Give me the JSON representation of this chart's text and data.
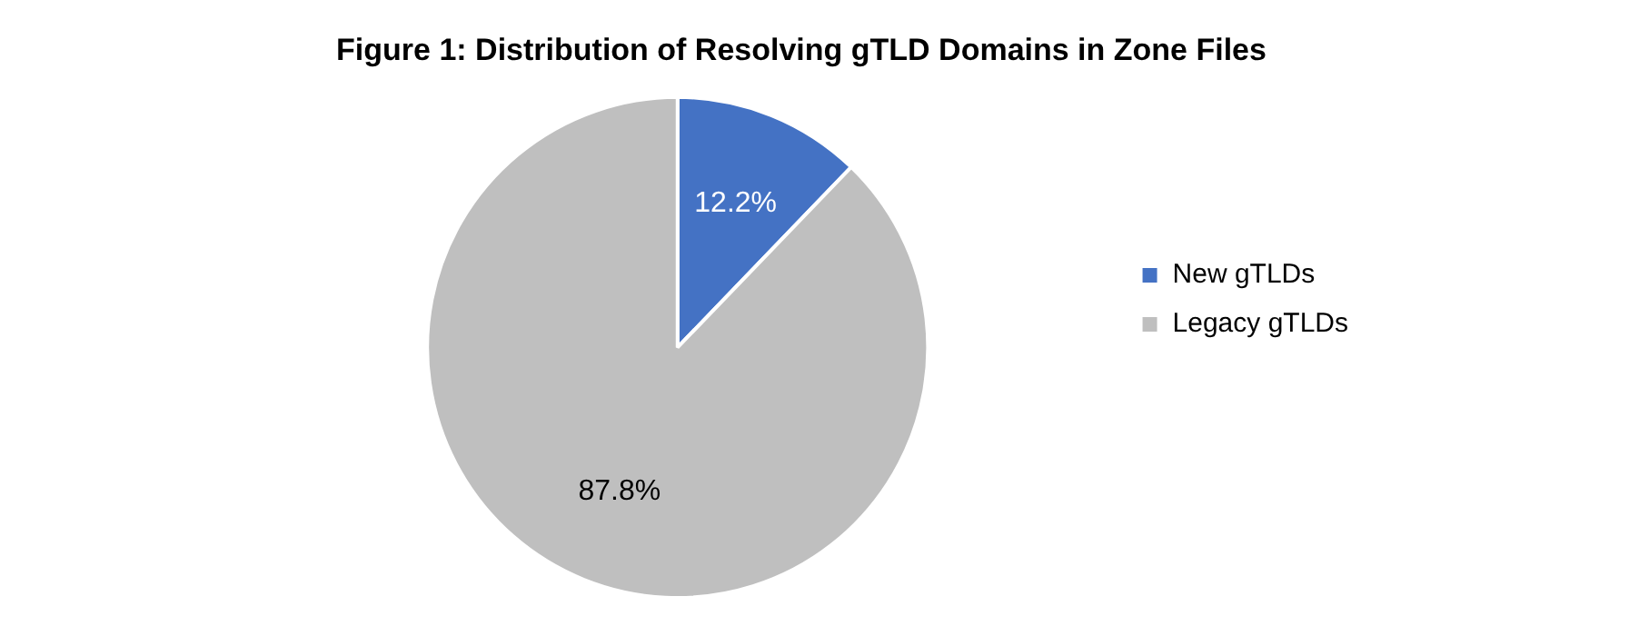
{
  "chart_data": {
    "type": "pie",
    "title": "Figure 1: Distribution of Resolving gTLD Domains in Zone Files",
    "categories": [
      "New gTLDs",
      "Legacy gTLDs"
    ],
    "values": [
      12.2,
      87.8
    ],
    "colors": [
      "#4472c4",
      "#bfbfbf"
    ],
    "value_labels": [
      "12.2%",
      "87.8%"
    ],
    "legend": "right"
  }
}
